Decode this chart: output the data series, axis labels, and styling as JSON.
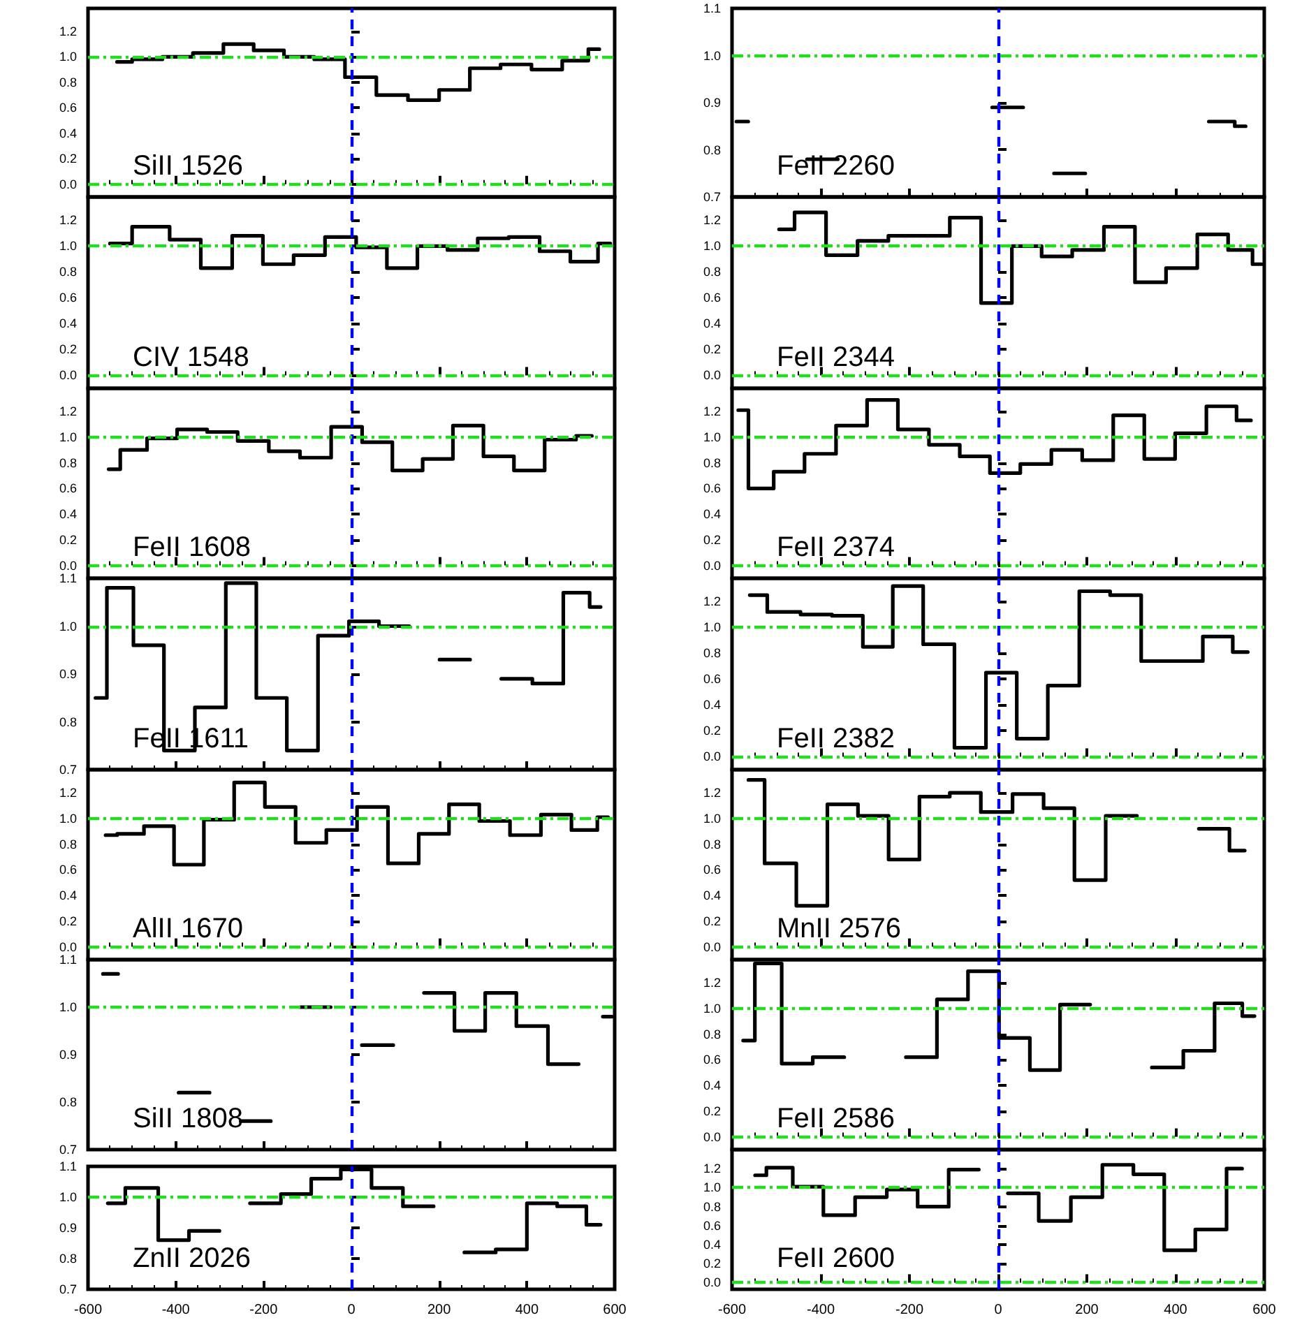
{
  "chart_data": [
    {
      "type": "step",
      "title": "SiII 1526",
      "color": "#000000",
      "marker": "none",
      "line_style": "solid",
      "grid": false,
      "tick_labels": "y",
      "xlim": [
        -600,
        600
      ],
      "xticks": [
        -600,
        -400,
        -200,
        0,
        200,
        400,
        600
      ],
      "ylim": [
        -0.1,
        1.38
      ],
      "yticks": [
        {
          "value": 0,
          "label": "0.0"
        },
        {
          "value": 0.2,
          "label": "0.2"
        },
        {
          "value": 0.4,
          "label": "0.4"
        },
        {
          "value": 0.6,
          "label": "0.6"
        },
        {
          "value": 0.8,
          "label": "0.8"
        },
        {
          "value": 1,
          "label": "1.0"
        },
        {
          "value": 1.2,
          "label": "1.2"
        }
      ],
      "x": [
        -534,
        -465,
        -396,
        -326,
        -257,
        -188,
        -119,
        -50,
        21,
        93,
        165,
        235,
        305,
        375,
        446,
        515,
        565
      ],
      "values": [
        0.96,
        0.98,
        1.0,
        1.03,
        1.1,
        1.05,
        1.0,
        0.98,
        0.84,
        0.7,
        0.66,
        0.74,
        0.91,
        0.94,
        0.9,
        0.97,
        1.06
      ],
      "ref_lines": [
        {
          "axis": "x",
          "value": 0,
          "color": "#0000ff",
          "line_style": "dashed"
        },
        {
          "axis": "y",
          "value": 1,
          "color": "#22dd22",
          "line_style": "dashdot"
        },
        {
          "axis": "y",
          "value": 0,
          "color": "#22dd22",
          "line_style": "dashdot"
        }
      ]
    },
    {
      "type": "step",
      "title": "CIV 1548",
      "color": "#000000",
      "marker": "none",
      "line_style": "solid",
      "grid": false,
      "tick_labels": "y",
      "xlim": [
        -600,
        600
      ],
      "xticks": [
        -600,
        -400,
        -200,
        0,
        200,
        400,
        600
      ],
      "ylim": [
        -0.1,
        1.38
      ],
      "yticks": [
        {
          "value": 0,
          "label": "0.0"
        },
        {
          "value": 0.2,
          "label": "0.2"
        },
        {
          "value": 0.4,
          "label": "0.4"
        },
        {
          "value": 0.6,
          "label": "0.6"
        },
        {
          "value": 0.8,
          "label": "0.8"
        },
        {
          "value": 1,
          "label": "1.0"
        },
        {
          "value": 1.2,
          "label": "1.2"
        }
      ],
      "x": [
        -550,
        -449,
        -379,
        -307,
        -236,
        -167,
        -96,
        -24,
        46,
        116,
        185,
        253,
        323,
        394,
        464,
        534,
        590
      ],
      "values": [
        1.02,
        1.15,
        1.05,
        0.83,
        1.08,
        0.86,
        0.93,
        1.07,
        0.99,
        0.83,
        1.0,
        0.97,
        1.06,
        1.07,
        0.96,
        0.88,
        1.02
      ],
      "ref_lines": [
        {
          "axis": "x",
          "value": 0,
          "color": "#0000ff",
          "line_style": "dashed"
        },
        {
          "axis": "y",
          "value": 1,
          "color": "#22dd22",
          "line_style": "dashdot"
        },
        {
          "axis": "y",
          "value": 0,
          "color": "#22dd22",
          "line_style": "dashdot"
        }
      ]
    },
    {
      "type": "step",
      "title": "FeII 1608",
      "color": "#000000",
      "marker": "none",
      "line_style": "solid",
      "grid": false,
      "tick_labels": "y",
      "xlim": [
        -600,
        600
      ],
      "xticks": [
        -600,
        -400,
        -200,
        0,
        200,
        400,
        600
      ],
      "ylim": [
        -0.1,
        1.38
      ],
      "yticks": [
        {
          "value": 0,
          "label": "0.0"
        },
        {
          "value": 0.2,
          "label": "0.2"
        },
        {
          "value": 0.4,
          "label": "0.4"
        },
        {
          "value": 0.6,
          "label": "0.6"
        },
        {
          "value": 0.8,
          "label": "0.8"
        },
        {
          "value": 1,
          "label": "1.0"
        },
        {
          "value": 1.2,
          "label": "1.2"
        }
      ],
      "x": [
        -553,
        -500,
        -431,
        -363,
        -294,
        -224,
        -152,
        -82,
        -10,
        59,
        128,
        197,
        266,
        336,
        405,
        476,
        548
      ],
      "values": [
        0.75,
        0.9,
        0.99,
        1.06,
        1.04,
        0.97,
        0.89,
        0.84,
        1.08,
        0.96,
        0.74,
        0.83,
        1.09,
        0.85,
        0.74,
        0.98,
        1.01
      ],
      "ref_lines": [
        {
          "axis": "x",
          "value": 0,
          "color": "#0000ff",
          "line_style": "dashed"
        },
        {
          "axis": "y",
          "value": 1,
          "color": "#22dd22",
          "line_style": "dashdot"
        },
        {
          "axis": "y",
          "value": 0,
          "color": "#22dd22",
          "line_style": "dashdot"
        }
      ]
    },
    {
      "type": "step",
      "title": "FeII 1611",
      "color": "#000000",
      "marker": "none",
      "line_style": "solid",
      "grid": false,
      "tick_labels": "y",
      "xlim": [
        -600,
        600
      ],
      "xticks": [
        -600,
        -400,
        -200,
        0,
        200,
        400,
        600
      ],
      "ylim": [
        0.7,
        1.1
      ],
      "yticks": [
        {
          "value": 0.7,
          "label": "0.7"
        },
        {
          "value": 0.8,
          "label": "0.8"
        },
        {
          "value": 0.9,
          "label": "0.9"
        },
        {
          "value": 1,
          "label": "1.0"
        },
        {
          "value": 1.1,
          "label": "1.1"
        }
      ],
      "x": [
        -583,
        -531,
        -462,
        -392,
        -321,
        -251,
        -182,
        -112,
        -40,
        29,
        97,
        167,
        235,
        306,
        377,
        448,
        518,
        568
      ],
      "values": [
        0.85,
        1.08,
        0.96,
        0.74,
        0.83,
        1.09,
        0.85,
        0.74,
        0.98,
        1.01,
        1.0,
        null,
        0.93,
        null,
        0.89,
        0.88,
        1.07,
        1.04
      ],
      "ref_lines": [
        {
          "axis": "x",
          "value": 0,
          "color": "#0000ff",
          "line_style": "dashed"
        },
        {
          "axis": "y",
          "value": 1,
          "color": "#22dd22",
          "line_style": "dashdot"
        }
      ]
    },
    {
      "type": "step",
      "title": "AlII 1670",
      "color": "#000000",
      "marker": "none",
      "line_style": "solid",
      "grid": false,
      "tick_labels": "y",
      "xlim": [
        -600,
        600
      ],
      "xticks": [
        -600,
        -400,
        -200,
        0,
        200,
        400,
        600
      ],
      "ylim": [
        -0.1,
        1.38
      ],
      "yticks": [
        {
          "value": 0,
          "label": "0.0"
        },
        {
          "value": 0.2,
          "label": "0.2"
        },
        {
          "value": 0.4,
          "label": "0.4"
        },
        {
          "value": 0.6,
          "label": "0.6"
        },
        {
          "value": 0.8,
          "label": "0.8"
        },
        {
          "value": 1,
          "label": "1.0"
        },
        {
          "value": 1.2,
          "label": "1.2"
        }
      ],
      "x": [
        -560,
        -507,
        -438,
        -370,
        -302,
        -232,
        -162,
        -92,
        -22,
        48,
        119,
        188,
        257,
        326,
        397,
        467,
        536,
        585
      ],
      "values": [
        0.87,
        0.88,
        0.94,
        0.64,
        0.99,
        1.28,
        1.09,
        0.81,
        0.91,
        1.09,
        0.65,
        0.88,
        1.11,
        0.98,
        0.87,
        1.03,
        0.91,
        1.01
      ],
      "ref_lines": [
        {
          "axis": "x",
          "value": 0,
          "color": "#0000ff",
          "line_style": "dashed"
        },
        {
          "axis": "y",
          "value": 1,
          "color": "#22dd22",
          "line_style": "dashdot"
        },
        {
          "axis": "y",
          "value": 0,
          "color": "#22dd22",
          "line_style": "dashdot"
        }
      ]
    },
    {
      "type": "step",
      "title": "SiII 1808",
      "color": "#000000",
      "marker": "none",
      "line_style": "solid",
      "grid": false,
      "tick_labels": "y",
      "xlim": [
        -600,
        600
      ],
      "xticks": [
        -600,
        -400,
        -200,
        0,
        200,
        400,
        600
      ],
      "ylim": [
        0.7,
        1.1
      ],
      "yticks": [
        {
          "value": 0.7,
          "label": "0.7"
        },
        {
          "value": 0.8,
          "label": "0.8"
        },
        {
          "value": 0.9,
          "label": "0.9"
        },
        {
          "value": 1,
          "label": "1.0"
        },
        {
          "value": 1.1,
          "label": "1.1"
        }
      ],
      "x": [
        -566,
        -497,
        -428,
        -359,
        -287,
        -217,
        -150,
        -82,
        -12,
        60,
        131,
        200,
        270,
        340,
        412,
        484,
        552,
        594
      ],
      "values": [
        1.07,
        null,
        null,
        0.82,
        null,
        0.76,
        null,
        1.0,
        null,
        0.92,
        null,
        1.03,
        0.95,
        1.03,
        0.96,
        0.88,
        null,
        0.98
      ],
      "ref_lines": [
        {
          "axis": "x",
          "value": 0,
          "color": "#0000ff",
          "line_style": "dashed"
        },
        {
          "axis": "y",
          "value": 1,
          "color": "#22dd22",
          "line_style": "dashdot"
        }
      ]
    },
    {
      "type": "step",
      "title": "ZnII 2026",
      "color": "#000000",
      "marker": "none",
      "line_style": "solid",
      "grid": false,
      "xlim": [
        -600,
        600
      ],
      "xticks": [
        -600,
        -400,
        -200,
        0,
        200,
        400,
        600
      ],
      "ylim": [
        0.7,
        1.1
      ],
      "yticks": [
        {
          "value": 0.7,
          "label": "0.7"
        },
        {
          "value": 0.8,
          "label": "0.8"
        },
        {
          "value": 0.9,
          "label": "0.9"
        },
        {
          "value": 1,
          "label": "1.0"
        },
        {
          "value": 1.1,
          "label": "1.1"
        }
      ],
      "x": [
        -555,
        -475,
        -405,
        -335,
        -266,
        -196,
        -125,
        -58,
        10,
        82,
        153,
        222,
        293,
        365,
        435,
        503,
        568
      ],
      "values": [
        0.98,
        1.03,
        0.86,
        0.89,
        null,
        0.98,
        1.01,
        1.06,
        1.09,
        1.03,
        0.97,
        null,
        0.82,
        0.83,
        0.98,
        0.97,
        0.91
      ],
      "ref_lines": [
        {
          "axis": "x",
          "value": 0,
          "color": "#0000ff",
          "line_style": "dashed"
        },
        {
          "axis": "y",
          "value": 1,
          "color": "#22dd22",
          "line_style": "dashdot"
        }
      ]
    },
    {
      "type": "step",
      "title": "FeII 2260",
      "color": "#000000",
      "marker": "none",
      "line_style": "solid",
      "grid": false,
      "tick_labels": "y",
      "xlim": [
        -600,
        600
      ],
      "xticks": [
        -600,
        -400,
        -200,
        0,
        200,
        400,
        600
      ],
      "ylim": [
        0.7,
        1.1
      ],
      "yticks": [
        {
          "value": 0.7,
          "label": "0.7"
        },
        {
          "value": 0.8,
          "label": "0.8"
        },
        {
          "value": 0.9,
          "label": "0.9"
        },
        {
          "value": 1,
          "label": "1.0"
        },
        {
          "value": 1.1,
          "label": "1.1"
        }
      ],
      "x": [
        -590,
        -537,
        -466,
        -396,
        -327,
        -258,
        -190,
        -120,
        -49,
        22,
        91,
        161,
        232,
        301,
        371,
        441,
        509,
        558
      ],
      "values": [
        0.86,
        null,
        null,
        0.78,
        null,
        null,
        null,
        null,
        null,
        0.89,
        null,
        0.75,
        null,
        null,
        null,
        null,
        0.86,
        0.85
      ],
      "ref_lines": [
        {
          "axis": "x",
          "value": 0,
          "color": "#0000ff",
          "line_style": "dashed"
        },
        {
          "axis": "y",
          "value": 1,
          "color": "#22dd22",
          "line_style": "dashdot"
        }
      ]
    },
    {
      "type": "step",
      "title": "FeII 2344",
      "color": "#000000",
      "marker": "none",
      "line_style": "solid",
      "grid": false,
      "tick_labels": "y",
      "xlim": [
        -600,
        600
      ],
      "xticks": [
        -600,
        -400,
        -200,
        0,
        200,
        400,
        600
      ],
      "ylim": [
        -0.1,
        1.38
      ],
      "yticks": [
        {
          "value": 0,
          "label": "0.0"
        },
        {
          "value": 0.2,
          "label": "0.2"
        },
        {
          "value": 0.4,
          "label": "0.4"
        },
        {
          "value": 0.6,
          "label": "0.6"
        },
        {
          "value": 0.8,
          "label": "0.8"
        },
        {
          "value": 1,
          "label": "1.0"
        },
        {
          "value": 1.2,
          "label": "1.2"
        }
      ],
      "x": [
        -494,
        -424,
        -352,
        -282,
        -213,
        -144,
        -74,
        -3,
        65,
        131,
        203,
        274,
        343,
        414,
        484,
        553,
        594
      ],
      "values": [
        1.13,
        1.26,
        0.93,
        1.04,
        1.08,
        1.08,
        1.22,
        0.56,
        1.0,
        0.92,
        0.97,
        1.15,
        0.72,
        0.83,
        1.09,
        0.97,
        0.86
      ],
      "ref_lines": [
        {
          "axis": "x",
          "value": 0,
          "color": "#0000ff",
          "line_style": "dashed"
        },
        {
          "axis": "y",
          "value": 1,
          "color": "#22dd22",
          "line_style": "dashdot"
        },
        {
          "axis": "y",
          "value": 0,
          "color": "#22dd22",
          "line_style": "dashdot"
        }
      ]
    },
    {
      "type": "step",
      "title": "FeII 2374",
      "color": "#000000",
      "marker": "none",
      "line_style": "solid",
      "grid": false,
      "tick_labels": "y",
      "xlim": [
        -600,
        600
      ],
      "xticks": [
        -600,
        -400,
        -200,
        0,
        200,
        400,
        600
      ],
      "ylim": [
        -0.1,
        1.38
      ],
      "yticks": [
        {
          "value": 0,
          "label": "0.0"
        },
        {
          "value": 0.2,
          "label": "0.2"
        },
        {
          "value": 0.4,
          "label": "0.4"
        },
        {
          "value": 0.6,
          "label": "0.6"
        },
        {
          "value": 0.8,
          "label": "0.8"
        },
        {
          "value": 1,
          "label": "1.0"
        },
        {
          "value": 1.2,
          "label": "1.2"
        }
      ],
      "x": [
        -586,
        -540,
        -472,
        -401,
        -330,
        -261,
        -191,
        -121,
        -52,
        15,
        85,
        155,
        224,
        295,
        364,
        434,
        505,
        570
      ],
      "values": [
        1.21,
        0.6,
        0.73,
        0.87,
        1.09,
        1.29,
        1.06,
        0.94,
        0.85,
        0.72,
        0.79,
        0.9,
        0.82,
        1.17,
        0.83,
        1.03,
        1.24,
        1.13
      ],
      "ref_lines": [
        {
          "axis": "x",
          "value": 0,
          "color": "#0000ff",
          "line_style": "dashed"
        },
        {
          "axis": "y",
          "value": 1,
          "color": "#22dd22",
          "line_style": "dashdot"
        },
        {
          "axis": "y",
          "value": 0,
          "color": "#22dd22",
          "line_style": "dashdot"
        }
      ]
    },
    {
      "type": "step",
      "title": "FeII 2382",
      "color": "#000000",
      "marker": "none",
      "line_style": "solid",
      "grid": false,
      "tick_labels": "y",
      "xlim": [
        -600,
        600
      ],
      "xticks": [
        -600,
        -400,
        -200,
        0,
        200,
        400,
        600
      ],
      "ylim": [
        -0.1,
        1.38
      ],
      "yticks": [
        {
          "value": 0,
          "label": "0.0"
        },
        {
          "value": 0.2,
          "label": "0.2"
        },
        {
          "value": 0.4,
          "label": "0.4"
        },
        {
          "value": 0.6,
          "label": "0.6"
        },
        {
          "value": 0.8,
          "label": "0.8"
        },
        {
          "value": 1,
          "label": "1.0"
        },
        {
          "value": 1.2,
          "label": "1.2"
        }
      ],
      "x": [
        -560,
        -481,
        -410,
        -339,
        -271,
        -204,
        -134,
        -63,
        8,
        76,
        148,
        218,
        287,
        358,
        428,
        495,
        563
      ],
      "values": [
        1.25,
        1.12,
        1.1,
        1.09,
        0.85,
        1.32,
        0.87,
        0.07,
        0.65,
        0.14,
        0.55,
        1.28,
        1.25,
        0.74,
        0.74,
        0.93,
        0.81
      ],
      "ref_lines": [
        {
          "axis": "x",
          "value": 0,
          "color": "#0000ff",
          "line_style": "dashed"
        },
        {
          "axis": "y",
          "value": 1,
          "color": "#22dd22",
          "line_style": "dashdot"
        },
        {
          "axis": "y",
          "value": 0,
          "color": "#22dd22",
          "line_style": "dashdot"
        }
      ]
    },
    {
      "type": "step",
      "title": "MnII 2576",
      "color": "#000000",
      "marker": "none",
      "line_style": "solid",
      "grid": false,
      "tick_labels": "y",
      "xlim": [
        -600,
        600
      ],
      "xticks": [
        -600,
        -400,
        -200,
        0,
        200,
        400,
        600
      ],
      "ylim": [
        -0.1,
        1.38
      ],
      "yticks": [
        {
          "value": 0,
          "label": "0.0"
        },
        {
          "value": 0.2,
          "label": "0.2"
        },
        {
          "value": 0.4,
          "label": "0.4"
        },
        {
          "value": 0.6,
          "label": "0.6"
        },
        {
          "value": 0.8,
          "label": "0.8"
        },
        {
          "value": 1,
          "label": "1.0"
        },
        {
          "value": 1.2,
          "label": "1.2"
        }
      ],
      "x": [
        -563,
        -490,
        -420,
        -350,
        -282,
        -212,
        -143,
        -75,
        -3,
        68,
        137,
        207,
        278,
        348,
        418,
        487,
        556
      ],
      "values": [
        1.3,
        0.65,
        0.32,
        1.11,
        1.02,
        0.68,
        1.17,
        1.2,
        1.05,
        1.19,
        1.08,
        0.52,
        1.02,
        null,
        null,
        0.92,
        0.75
      ],
      "ref_lines": [
        {
          "axis": "x",
          "value": 0,
          "color": "#0000ff",
          "line_style": "dashed"
        },
        {
          "axis": "y",
          "value": 1,
          "color": "#22dd22",
          "line_style": "dashdot"
        },
        {
          "axis": "y",
          "value": 0,
          "color": "#22dd22",
          "line_style": "dashdot"
        }
      ]
    },
    {
      "type": "step",
      "title": "FeII 2586",
      "color": "#000000",
      "marker": "none",
      "line_style": "solid",
      "grid": false,
      "tick_labels": "y",
      "xlim": [
        -600,
        600
      ],
      "xticks": [
        -600,
        -400,
        -200,
        0,
        200,
        400,
        600
      ],
      "ylim": [
        -0.1,
        1.38
      ],
      "yticks": [
        {
          "value": 0,
          "label": "0.0"
        },
        {
          "value": 0.2,
          "label": "0.2"
        },
        {
          "value": 0.4,
          "label": "0.4"
        },
        {
          "value": 0.6,
          "label": "0.6"
        },
        {
          "value": 0.8,
          "label": "0.8"
        },
        {
          "value": 1,
          "label": "1.0"
        },
        {
          "value": 1.2,
          "label": "1.2"
        }
      ],
      "x": [
        -575,
        -522,
        -454,
        -382,
        -312,
        -243,
        -173,
        -103,
        -33,
        37,
        106,
        173,
        242,
        311,
        382,
        453,
        523,
        578
      ],
      "values": [
        0.75,
        1.35,
        0.57,
        0.62,
        null,
        null,
        0.62,
        1.07,
        1.29,
        0.77,
        0.52,
        1.03,
        null,
        null,
        0.54,
        0.67,
        1.04,
        0.94
      ],
      "ref_lines": [
        {
          "axis": "x",
          "value": 0,
          "color": "#0000ff",
          "line_style": "dashed"
        },
        {
          "axis": "y",
          "value": 1,
          "color": "#22dd22",
          "line_style": "dashdot"
        },
        {
          "axis": "y",
          "value": 0,
          "color": "#22dd22",
          "line_style": "dashdot"
        }
      ]
    },
    {
      "type": "step",
      "title": "FeII 2600",
      "color": "#000000",
      "marker": "none",
      "line_style": "solid",
      "grid": false,
      "xlim": [
        -600,
        600
      ],
      "xticks": [
        -600,
        -400,
        -200,
        0,
        200,
        400,
        600
      ],
      "ylim": [
        -0.07,
        1.4
      ],
      "yticks": [
        {
          "value": 0,
          "label": "0.0"
        },
        {
          "value": 0.2,
          "label": "0.2"
        },
        {
          "value": 0.4,
          "label": "0.4"
        },
        {
          "value": 0.6,
          "label": "0.6"
        },
        {
          "value": 0.8,
          "label": "0.8"
        },
        {
          "value": 1,
          "label": "1.0"
        },
        {
          "value": 1.2,
          "label": "1.2"
        }
      ],
      "x": [
        -548,
        -497,
        -429,
        -359,
        -286,
        -216,
        -147,
        -76,
        -11,
        55,
        128,
        200,
        270,
        340,
        409,
        480,
        550
      ],
      "values": [
        1.13,
        1.21,
        1.01,
        0.71,
        0.9,
        0.98,
        0.8,
        1.19,
        null,
        0.94,
        0.65,
        0.9,
        1.24,
        1.14,
        0.34,
        0.56,
        1.2
      ],
      "ref_lines": [
        {
          "axis": "x",
          "value": 0,
          "color": "#0000ff",
          "line_style": "dashed"
        },
        {
          "axis": "y",
          "value": 1,
          "color": "#22dd22",
          "line_style": "dashdot"
        },
        {
          "axis": "y",
          "value": 0,
          "color": "#22dd22",
          "line_style": "dashdot"
        }
      ]
    }
  ]
}
